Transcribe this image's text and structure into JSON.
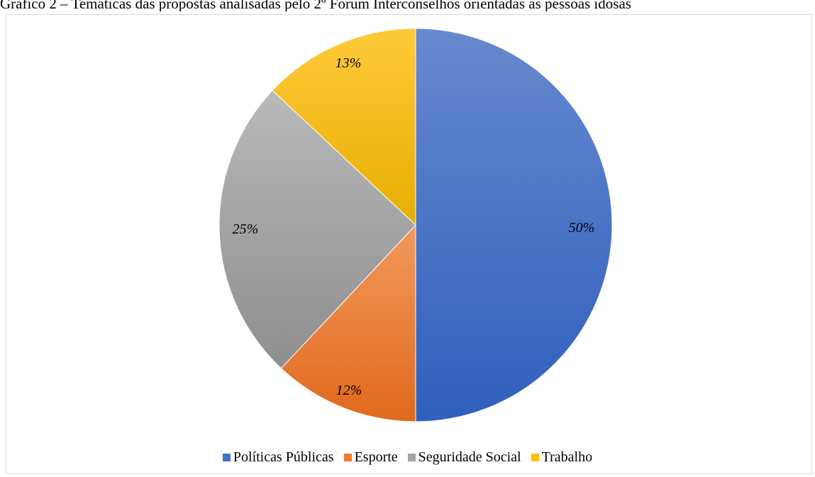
{
  "page": {
    "title": "Gráfico 2 – Temáticas das propostas analisadas pelo 2º Fórum Interconselhos orientadas às pessoas idosas"
  },
  "chart_data": {
    "type": "pie",
    "title": "Gráfico 2 – Temáticas das propostas analisadas pelo 2º Fórum Interconselhos orientadas às pessoas idosas",
    "categories": [
      "Políticas Públicas",
      "Esporte",
      "Seguridade Social",
      "Trabalho"
    ],
    "values": [
      50,
      12,
      25,
      13
    ],
    "labels": [
      "50%",
      "12%",
      "25%",
      "13%"
    ],
    "colors": [
      "#4472c4",
      "#ed7d31",
      "#a5a5a5",
      "#ffc000"
    ],
    "legend_position": "bottom",
    "start_angle": "top, clockwise"
  }
}
